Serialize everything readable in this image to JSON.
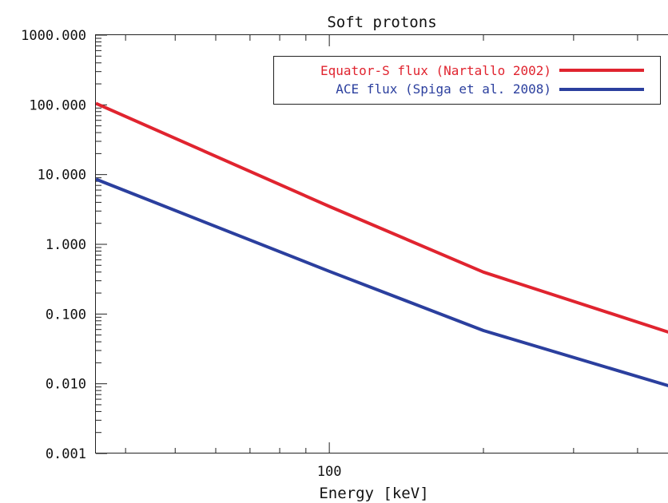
{
  "chart_data": {
    "type": "line",
    "title": "Soft protons",
    "xlabel": "Energy [keV]",
    "ylabel": "",
    "x_scale": "log",
    "y_scale": "log",
    "xlim": [
      35,
      500
    ],
    "ylim": [
      0.001,
      1000
    ],
    "x_ticks": [
      {
        "value": 100,
        "label": "100"
      }
    ],
    "y_ticks": [
      {
        "value": 1000,
        "label": "1000.000"
      },
      {
        "value": 100,
        "label": "100.000"
      },
      {
        "value": 10,
        "label": "10.000"
      },
      {
        "value": 1,
        "label": "1.000"
      },
      {
        "value": 0.1,
        "label": "0.100"
      },
      {
        "value": 0.01,
        "label": "0.010"
      },
      {
        "value": 0.001,
        "label": "0.001"
      }
    ],
    "grid": false,
    "legend_position": "top-right",
    "series": [
      {
        "name": "Equator-S flux (Nartallo 2002)",
        "color": "#e0242f",
        "x": [
          35,
          100,
          200,
          500
        ],
        "y": [
          105,
          3.5,
          0.4,
          0.045
        ]
      },
      {
        "name": "ACE flux (Spiga et al. 2008)",
        "color": "#2b3f9e",
        "x": [
          35,
          100,
          200,
          500
        ],
        "y": [
          8.6,
          0.41,
          0.058,
          0.0078
        ]
      }
    ]
  }
}
